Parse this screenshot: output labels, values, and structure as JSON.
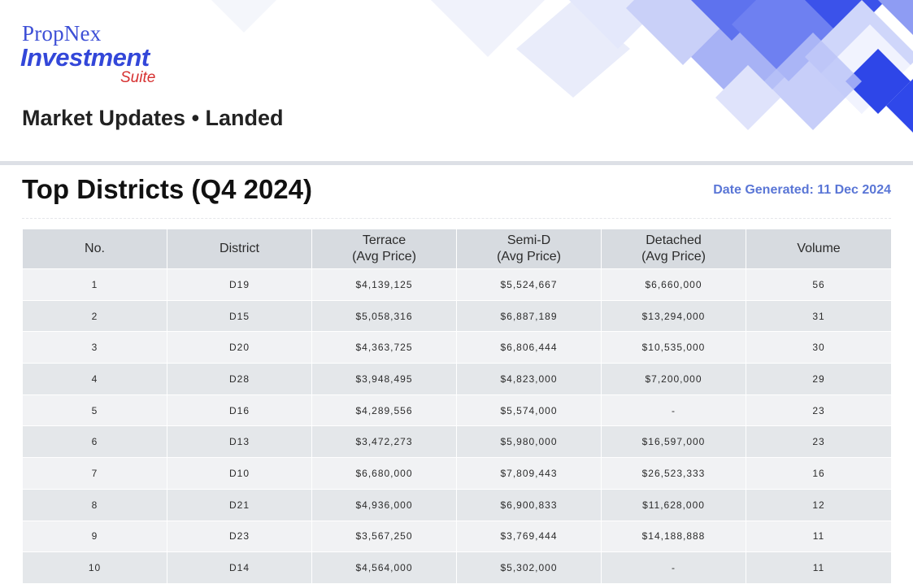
{
  "brand": {
    "company": "PropNex",
    "product": "Investment",
    "suite": "Suite"
  },
  "report_subtitle": "Market Updates • Landed",
  "section_title": "Top Districts (Q4 2024)",
  "date_generated": "Date Generated: 11 Dec 2024",
  "table": {
    "headers": [
      {
        "line1": "No.",
        "line2": ""
      },
      {
        "line1": "District",
        "line2": ""
      },
      {
        "line1": "Terrace",
        "line2": "(Avg Price)"
      },
      {
        "line1": "Semi-D",
        "line2": "(Avg Price)"
      },
      {
        "line1": "Detached",
        "line2": "(Avg Price)"
      },
      {
        "line1": "Volume",
        "line2": ""
      }
    ],
    "rows": [
      {
        "no": "1",
        "district": "D19",
        "terrace": "$4,139,125",
        "semi_d": "$5,524,667",
        "detached": "$6,660,000",
        "volume": "56"
      },
      {
        "no": "2",
        "district": "D15",
        "terrace": "$5,058,316",
        "semi_d": "$6,887,189",
        "detached": "$13,294,000",
        "volume": "31"
      },
      {
        "no": "3",
        "district": "D20",
        "terrace": "$4,363,725",
        "semi_d": "$6,806,444",
        "detached": "$10,535,000",
        "volume": "30"
      },
      {
        "no": "4",
        "district": "D28",
        "terrace": "$3,948,495",
        "semi_d": "$4,823,000",
        "detached": "$7,200,000",
        "volume": "29"
      },
      {
        "no": "5",
        "district": "D16",
        "terrace": "$4,289,556",
        "semi_d": "$5,574,000",
        "detached": "-",
        "volume": "23"
      },
      {
        "no": "6",
        "district": "D13",
        "terrace": "$3,472,273",
        "semi_d": "$5,980,000",
        "detached": "$16,597,000",
        "volume": "23"
      },
      {
        "no": "7",
        "district": "D10",
        "terrace": "$6,680,000",
        "semi_d": "$7,809,443",
        "detached": "$26,523,333",
        "volume": "16"
      },
      {
        "no": "8",
        "district": "D21",
        "terrace": "$4,936,000",
        "semi_d": "$6,900,833",
        "detached": "$11,628,000",
        "volume": "12"
      },
      {
        "no": "9",
        "district": "D23",
        "terrace": "$3,567,250",
        "semi_d": "$3,769,444",
        "detached": "$14,188,888",
        "volume": "11"
      },
      {
        "no": "10",
        "district": "D14",
        "terrace": "$4,564,000",
        "semi_d": "$5,302,000",
        "detached": "-",
        "volume": "11"
      }
    ]
  }
}
